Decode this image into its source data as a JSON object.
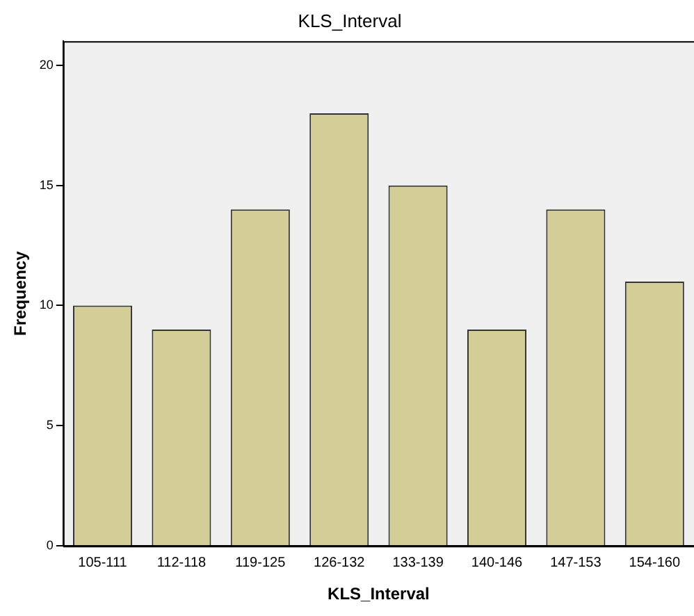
{
  "chart_data": {
    "type": "bar",
    "title": "KLS_Interval",
    "xlabel": "KLS_Interval",
    "ylabel": "Frequency",
    "categories": [
      "105-111",
      "112-118",
      "119-125",
      "126-132",
      "133-139",
      "140-146",
      "147-153",
      "154-160"
    ],
    "values": [
      10,
      9,
      14,
      18,
      15,
      9,
      14,
      11
    ],
    "color": "#d3ce97",
    "ylim": [
      0,
      21
    ],
    "yticks": [
      0,
      5,
      10,
      15,
      20
    ],
    "grid": false,
    "legend": false
  }
}
